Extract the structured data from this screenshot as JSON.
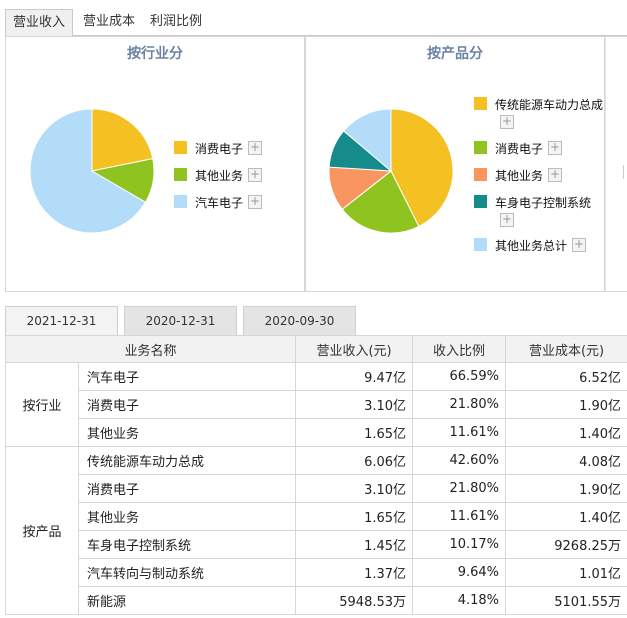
{
  "top_tabs": [
    "营业收入",
    "营业成本",
    "利润比例"
  ],
  "panels": [
    {
      "title": "按行业分",
      "legend": [
        {
          "label": "消费电子",
          "color": "#f5c021"
        },
        {
          "label": "其他业务",
          "color": "#8fc31f"
        },
        {
          "label": "汽车电子",
          "color": "#b3dcf8"
        }
      ]
    },
    {
      "title": "按产品分",
      "legend": [
        {
          "label": "传统能源车动力总成",
          "color": "#f5c021"
        },
        {
          "label": "消费电子",
          "color": "#8fc31f"
        },
        {
          "label": "其他业务",
          "color": "#f99660"
        },
        {
          "label": "车身电子控制系统",
          "color": "#168b8c"
        },
        {
          "label": "其他业务总计",
          "color": "#b3dcf8"
        }
      ]
    }
  ],
  "plus_symbol": "+",
  "chart_data": [
    {
      "type": "pie",
      "title": "按行业分",
      "categories": [
        "消费电子",
        "其他业务",
        "汽车电子"
      ],
      "values": [
        21.8,
        11.61,
        66.59
      ],
      "colors": [
        "#f5c021",
        "#8fc31f",
        "#b3dcf8"
      ]
    },
    {
      "type": "pie",
      "title": "按产品分",
      "categories": [
        "传统能源车动力总成",
        "消费电子",
        "其他业务",
        "车身电子控制系统",
        "其他业务总计"
      ],
      "values": [
        42.6,
        21.8,
        11.61,
        10.17,
        13.82
      ],
      "colors": [
        "#f5c021",
        "#8fc31f",
        "#f99660",
        "#168b8c",
        "#b3dcf8"
      ]
    }
  ],
  "date_tabs": [
    "2021-12-31",
    "2020-12-31",
    "2020-09-30"
  ],
  "table": {
    "headers": [
      "业务名称",
      "营业收入(元)",
      "收入比例",
      "营业成本(元)"
    ],
    "groups": [
      {
        "label": "按行业",
        "rows": [
          [
            "汽车电子",
            "9.47亿",
            "66.59%",
            "6.52亿"
          ],
          [
            "消费电子",
            "3.10亿",
            "21.80%",
            "1.90亿"
          ],
          [
            "其他业务",
            "1.65亿",
            "11.61%",
            "1.40亿"
          ]
        ]
      },
      {
        "label": "按产品",
        "rows": [
          [
            "传统能源车动力总成",
            "6.06亿",
            "42.60%",
            "4.08亿"
          ],
          [
            "消费电子",
            "3.10亿",
            "21.80%",
            "1.90亿"
          ],
          [
            "其他业务",
            "1.65亿",
            "11.61%",
            "1.40亿"
          ],
          [
            "车身电子控制系统",
            "1.45亿",
            "10.17%",
            "9268.25万"
          ],
          [
            "汽车转向与制动系统",
            "1.37亿",
            "9.64%",
            "1.01亿"
          ],
          [
            "新能源",
            "5948.53万",
            "4.18%",
            "5101.55万"
          ]
        ]
      }
    ]
  }
}
